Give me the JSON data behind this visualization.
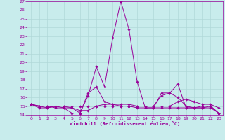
{
  "xlabel": "Windchill (Refroidissement éolien,°C)",
  "xlim": [
    -0.5,
    23.5
  ],
  "ylim": [
    14,
    27
  ],
  "xticks": [
    0,
    1,
    2,
    3,
    4,
    5,
    6,
    7,
    8,
    9,
    10,
    11,
    12,
    13,
    14,
    15,
    16,
    17,
    18,
    19,
    20,
    21,
    22,
    23
  ],
  "yticks": [
    14,
    15,
    16,
    17,
    18,
    19,
    20,
    21,
    22,
    23,
    24,
    25,
    26,
    27
  ],
  "background_color": "#c8ecec",
  "grid_color": "#b0d8d8",
  "line_color": "#990099",
  "lines": [
    [
      15.2,
      15.0,
      14.8,
      15.0,
      14.8,
      14.2,
      14.2,
      16.2,
      19.5,
      17.2,
      22.8,
      27.0,
      23.8,
      17.8,
      14.8,
      14.8,
      16.5,
      16.5,
      17.5,
      14.8,
      14.8,
      14.8,
      14.8,
      14.2
    ],
    [
      15.2,
      14.8,
      14.8,
      15.0,
      15.0,
      14.8,
      14.2,
      16.5,
      17.2,
      15.5,
      15.2,
      15.2,
      15.2,
      15.0,
      15.0,
      15.0,
      16.2,
      16.5,
      16.0,
      15.0,
      14.8,
      15.0,
      15.0,
      14.2
    ],
    [
      15.2,
      15.0,
      15.0,
      14.8,
      14.8,
      14.8,
      14.5,
      14.5,
      15.0,
      15.2,
      15.2,
      15.0,
      15.0,
      15.0,
      15.0,
      15.0,
      15.0,
      15.0,
      15.5,
      15.8,
      15.5,
      15.2,
      15.2,
      14.8
    ],
    [
      15.2,
      15.0,
      15.0,
      15.0,
      15.0,
      15.0,
      15.0,
      15.0,
      15.0,
      15.0,
      15.0,
      15.0,
      15.0,
      14.8,
      14.8,
      14.8,
      14.8,
      14.8,
      14.8,
      14.8,
      14.8,
      14.8,
      15.0,
      14.2
    ]
  ]
}
